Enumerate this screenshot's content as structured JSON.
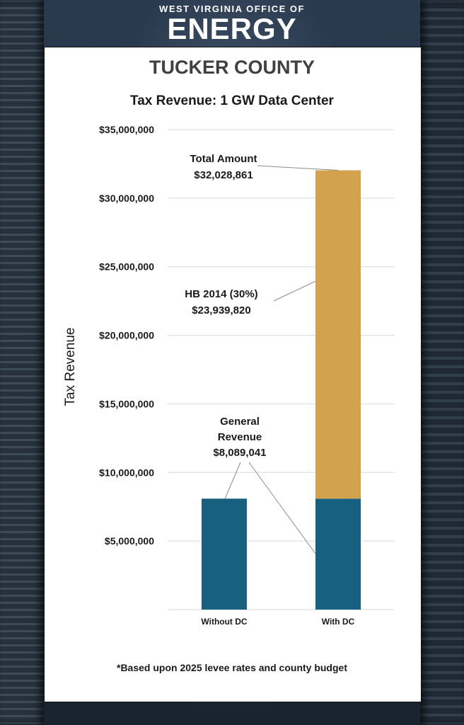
{
  "header": {
    "org_line": "WEST VIRGINIA OFFICE OF",
    "org_name": "ENERGY",
    "county": "TUCKER COUNTY"
  },
  "footnote": "*Based upon 2025 levee rates and county budget",
  "colors": {
    "general_revenue": "#17607f",
    "hb2014": "#d2a24c",
    "gridline": "#d9d9d9"
  },
  "chart_data": {
    "type": "bar",
    "stacked": true,
    "title": "Tax Revenue: 1 GW Data Center",
    "xlabel": "",
    "ylabel": "Tax Revenue",
    "ylim": [
      0,
      35000000
    ],
    "yticks": [
      0,
      5000000,
      10000000,
      15000000,
      20000000,
      25000000,
      30000000,
      35000000
    ],
    "ytick_labels": [
      "",
      "$5,000,000",
      "$10,000,000",
      "$15,000,000",
      "$20,000,000",
      "$25,000,000",
      "$30,000,000",
      "$35,000,000"
    ],
    "grid": true,
    "categories": [
      "Without DC",
      "With DC"
    ],
    "series": [
      {
        "key": "general",
        "values": [
          8089041,
          8089041
        ],
        "color": "#17607f"
      },
      {
        "key": "hb2014",
        "values": [
          0,
          23939820
        ],
        "color": "#d2a24c"
      }
    ],
    "annotations": {
      "total": {
        "lines": [
          "Total Amount",
          "$32,028,861"
        ],
        "value": 32028861
      },
      "hb2014": {
        "lines": [
          "HB 2014 (30%)",
          "$23,939,820"
        ],
        "value": 23939820
      },
      "general": {
        "lines": [
          "General",
          "Revenue",
          "$8,089,041"
        ],
        "value": 8089041
      }
    }
  }
}
